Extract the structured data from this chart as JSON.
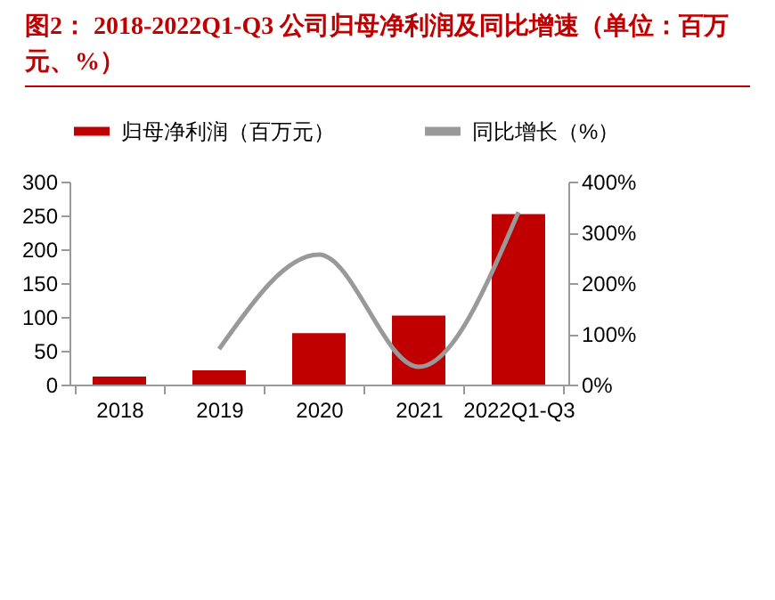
{
  "chart_data": {
    "type": "bar",
    "title": "图2： 2018-2022Q1-Q3 公司归母净利润及同比增速（单位：百万元、%）",
    "categories": [
      "2018",
      "2019",
      "2020",
      "2021",
      "2022Q1-Q3"
    ],
    "series": [
      {
        "name": "归母净利润（百万元）",
        "color": "#c00000",
        "values": [
          12,
          21,
          76,
          102,
          252
        ]
      },
      {
        "name": "同比增长（%）",
        "type": "line",
        "axis": "y2",
        "color": "#999999",
        "values": [
          null,
          70,
          256,
          35,
          340
        ]
      }
    ],
    "ylim": [
      0,
      300
    ],
    "yticks": [
      0,
      50,
      100,
      150,
      200,
      250,
      300
    ],
    "y2lim": [
      0,
      400
    ],
    "y2ticks": [
      {
        "value": 0,
        "label": "0%"
      },
      {
        "value": 100,
        "label": "100%"
      },
      {
        "value": 200,
        "label": "200%"
      },
      {
        "value": 300,
        "label": "300%"
      },
      {
        "value": 400,
        "label": "400%"
      }
    ],
    "grid": false,
    "legend": "top"
  }
}
